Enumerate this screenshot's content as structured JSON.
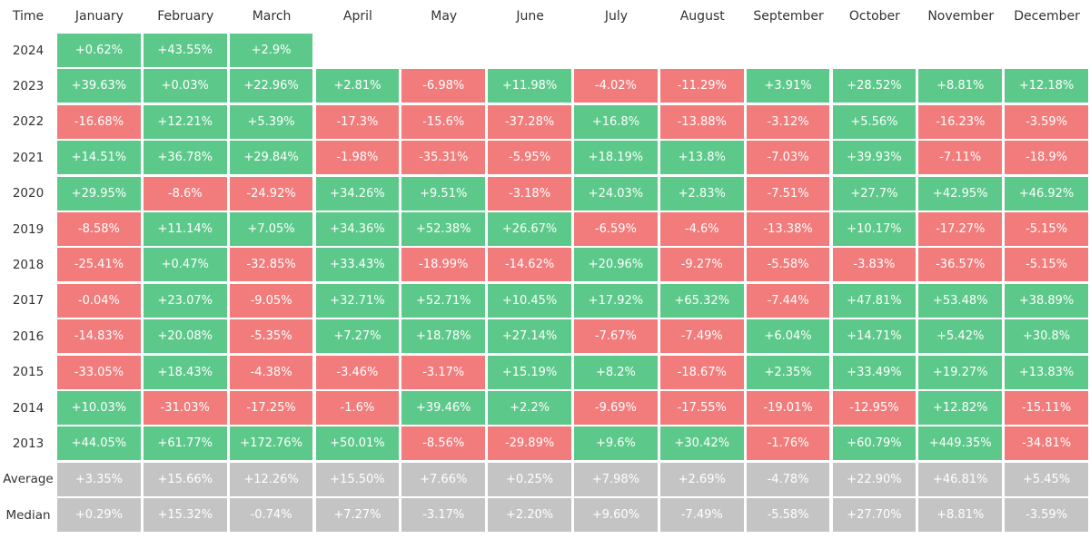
{
  "table": {
    "header": [
      "Time",
      "January",
      "February",
      "March",
      "April",
      "May",
      "June",
      "July",
      "August",
      "September",
      "October",
      "November",
      "December"
    ],
    "rows": [
      [
        "2024",
        "+0.62%",
        "+43.55%",
        "+2.9%"
      ],
      [
        "2023",
        "+39.63%",
        "+0.03%",
        "+22.96%",
        "+2.81%",
        "-6.98%",
        "+11.98%",
        "-4.02%",
        "-11.29%",
        "+3.91%",
        "+28.52%",
        "+8.81%",
        "+12.18%"
      ],
      [
        "2022",
        "-16.68%",
        "+12.21%",
        "+5.39%",
        "-17.3%",
        "-15.6%",
        "-37.28%",
        "+16.8%",
        "-13.88%",
        "-3.12%",
        "+5.56%",
        "-16.23%",
        "-3.59%"
      ],
      [
        "2021",
        "+14.51%",
        "+36.78%",
        "+29.84%",
        "-1.98%",
        "-35.31%",
        "-5.95%",
        "+18.19%",
        "+13.8%",
        "-7.03%",
        "+39.93%",
        "-7.11%",
        "-18.9%"
      ],
      [
        "2020",
        "+29.95%",
        "-8.6%",
        "-24.92%",
        "+34.26%",
        "+9.51%",
        "-3.18%",
        "+24.03%",
        "+2.83%",
        "-7.51%",
        "+27.7%",
        "+42.95%",
        "+46.92%"
      ],
      [
        "2019",
        "-8.58%",
        "+11.14%",
        "+7.05%",
        "+34.36%",
        "+52.38%",
        "+26.67%",
        "-6.59%",
        "-4.6%",
        "-13.38%",
        "+10.17%",
        "-17.27%",
        "-5.15%"
      ],
      [
        "2018",
        "-25.41%",
        "+0.47%",
        "-32.85%",
        "+33.43%",
        "-18.99%",
        "-14.62%",
        "+20.96%",
        "-9.27%",
        "-5.58%",
        "-3.83%",
        "-36.57%",
        "-5.15%"
      ],
      [
        "2017",
        "-0.04%",
        "+23.07%",
        "-9.05%",
        "+32.71%",
        "+52.71%",
        "+10.45%",
        "+17.92%",
        "+65.32%",
        "-7.44%",
        "+47.81%",
        "+53.48%",
        "+38.89%"
      ],
      [
        "2016",
        "-14.83%",
        "+20.08%",
        "-5.35%",
        "+7.27%",
        "+18.78%",
        "+27.14%",
        "-7.67%",
        "-7.49%",
        "+6.04%",
        "+14.71%",
        "+5.42%",
        "+30.8%"
      ],
      [
        "2015",
        "-33.05%",
        "+18.43%",
        "-4.38%",
        "-3.46%",
        "-3.17%",
        "+15.19%",
        "+8.2%",
        "-18.67%",
        "+2.35%",
        "+33.49%",
        "+19.27%",
        "+13.83%"
      ],
      [
        "2014",
        "+10.03%",
        "-31.03%",
        "-17.25%",
        "-1.6%",
        "+39.46%",
        "+2.2%",
        "-9.69%",
        "-17.55%",
        "-19.01%",
        "-12.95%",
        "+12.82%",
        "-15.11%"
      ],
      [
        "2013",
        "+44.05%",
        "+61.77%",
        "+172.76%",
        "+50.01%",
        "-8.56%",
        "-29.89%",
        "+9.6%",
        "+30.42%",
        "-1.76%",
        "+60.79%",
        "+449.35%",
        "-34.81%"
      ]
    ],
    "summary": [
      [
        "Average",
        "+3.35%",
        "+15.66%",
        "+12.26%",
        "+15.50%",
        "+7.66%",
        "+0.25%",
        "+7.98%",
        "+2.69%",
        "-4.78%",
        "+22.90%",
        "+46.81%",
        "+5.45%"
      ],
      [
        "Median",
        "+0.29%",
        "+15.32%",
        "-0.74%",
        "+7.27%",
        "-3.17%",
        "+2.20%",
        "+9.60%",
        "-7.49%",
        "-5.58%",
        "+27.70%",
        "+8.81%",
        "-3.59%"
      ]
    ]
  }
}
